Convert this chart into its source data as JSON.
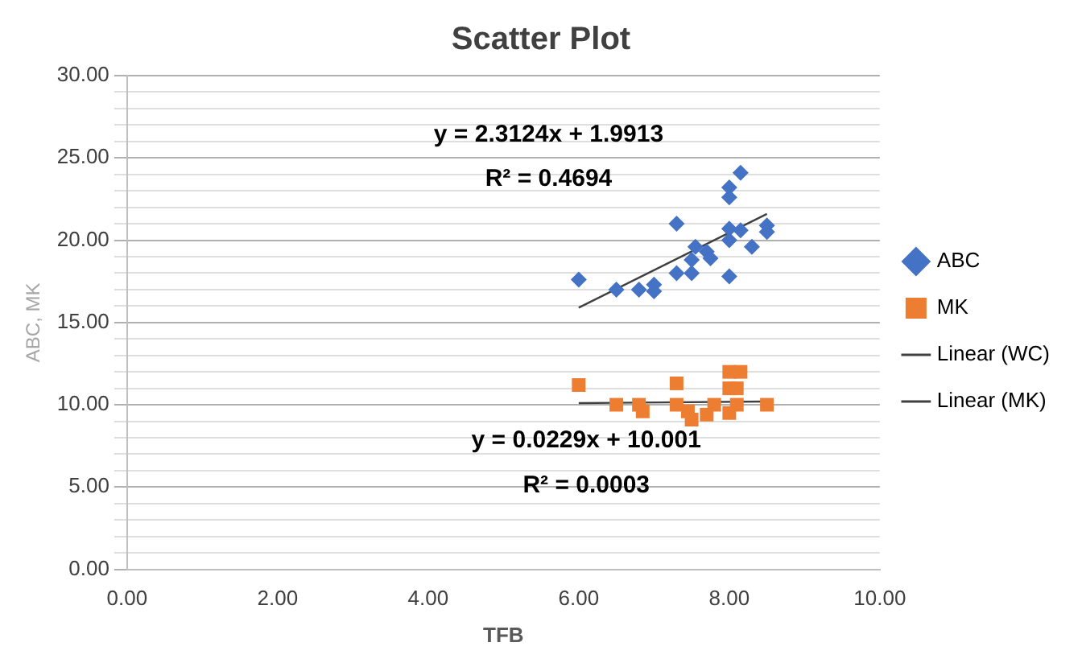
{
  "chart_data": {
    "type": "scatter",
    "title": "Scatter Plot",
    "xlabel": "TFB",
    "ylabel": "ABC, MK",
    "xlim": [
      0,
      10
    ],
    "xticks": [
      {
        "value": 0,
        "label": "0.00"
      },
      {
        "value": 2,
        "label": "2.00"
      },
      {
        "value": 4,
        "label": "4.00"
      },
      {
        "value": 6,
        "label": "6.00"
      },
      {
        "value": 8,
        "label": "8.00"
      },
      {
        "value": 10,
        "label": "10.00"
      }
    ],
    "ylim": [
      0,
      30
    ],
    "yticks": [
      {
        "value": 0,
        "label": "0.00"
      },
      {
        "value": 1,
        "label": null
      },
      {
        "value": 2,
        "label": null
      },
      {
        "value": 3,
        "label": null
      },
      {
        "value": 4,
        "label": null
      },
      {
        "value": 5,
        "label": "5.00"
      },
      {
        "value": 6,
        "label": null
      },
      {
        "value": 7,
        "label": null
      },
      {
        "value": 8,
        "label": null
      },
      {
        "value": 9,
        "label": null
      },
      {
        "value": 10,
        "label": "10.00"
      },
      {
        "value": 11,
        "label": null
      },
      {
        "value": 12,
        "label": null
      },
      {
        "value": 13,
        "label": null
      },
      {
        "value": 14,
        "label": null
      },
      {
        "value": 15,
        "label": "15.00"
      },
      {
        "value": 16,
        "label": null
      },
      {
        "value": 17,
        "label": null
      },
      {
        "value": 18,
        "label": null
      },
      {
        "value": 19,
        "label": null
      },
      {
        "value": 20,
        "label": "20.00"
      },
      {
        "value": 21,
        "label": null
      },
      {
        "value": 22,
        "label": null
      },
      {
        "value": 23,
        "label": null
      },
      {
        "value": 24,
        "label": null
      },
      {
        "value": 25,
        "label": "25.00"
      },
      {
        "value": 26,
        "label": null
      },
      {
        "value": 27,
        "label": null
      },
      {
        "value": 28,
        "label": null
      },
      {
        "value": 29,
        "label": null
      },
      {
        "value": 30,
        "label": "30.00"
      }
    ],
    "grid": "y",
    "legend": "right",
    "series": [
      {
        "name": "ABC",
        "marker": "diamond",
        "color": "#4472c4",
        "x": [
          6.0,
          6.5,
          6.8,
          7.0,
          7.0,
          7.3,
          7.3,
          7.5,
          7.5,
          7.55,
          7.7,
          7.75,
          8.0,
          8.0,
          8.0,
          8.0,
          8.0,
          8.15,
          8.15,
          8.3,
          8.5,
          8.5
        ],
        "values": [
          17.6,
          17.0,
          17.0,
          17.3,
          16.9,
          21.0,
          18.0,
          18.0,
          18.8,
          19.6,
          19.3,
          18.9,
          23.2,
          22.6,
          20.7,
          20.0,
          17.8,
          24.1,
          20.6,
          19.6,
          20.9,
          20.5
        ]
      },
      {
        "name": "MK",
        "marker": "square",
        "color": "#ed7d31",
        "x": [
          6.0,
          6.5,
          6.8,
          6.85,
          7.3,
          7.3,
          7.45,
          7.5,
          7.7,
          7.8,
          8.0,
          8.0,
          8.0,
          8.15,
          8.1,
          8.5,
          8.1
        ],
        "values": [
          11.2,
          10.0,
          10.0,
          9.6,
          11.3,
          10.0,
          9.6,
          9.1,
          9.4,
          10.0,
          12.0,
          11.0,
          9.5,
          12.0,
          10.0,
          10.0,
          11.0
        ]
      },
      {
        "name": "Linear (WC)",
        "type": "line",
        "marker": "none",
        "color": "#404040",
        "x": [
          6.0,
          8.5
        ],
        "values": [
          15.9,
          21.6
        ]
      },
      {
        "name": "Linear (MK)",
        "type": "line",
        "marker": "none",
        "color": "#404040",
        "x": [
          6.0,
          8.5
        ],
        "values": [
          10.1,
          10.2
        ]
      }
    ],
    "annotations": [
      "y = 2.3124x + 1.9913",
      "R² = 0.4694",
      "y = 0.0229x + 10.001",
      "R² = 0.0003"
    ]
  }
}
